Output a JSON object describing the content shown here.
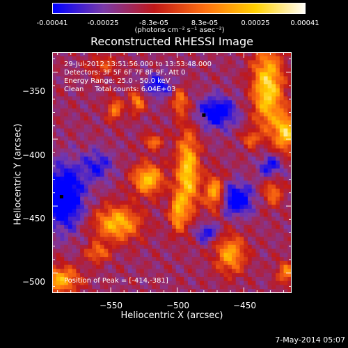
{
  "colorbar": {
    "ticks": [
      "-0.00041",
      "-0.00025",
      "-8.3e-05",
      "8.3e-05",
      "0.00025",
      "0.00041"
    ],
    "tick_values": [
      -0.00041,
      -0.00025,
      -8.3e-05,
      8.3e-05,
      0.00025,
      0.00041
    ],
    "units": "(photons cm⁻² s⁻¹ asec⁻²)"
  },
  "annotations": {
    "line1": "29-Jul-2012 13:51:56.000 to 13:53:48.000",
    "line2": "Detectors: 3F 5F 6F 7F 8F 9F, Att 0",
    "line3": "Energy Range: 25.0 - 50.0 keV",
    "line4": "Clean     Total counts: 6.04E+03",
    "peak": "Position of Peak = [-414,-381]"
  },
  "footer": {
    "date": "7-May-2014 05:07"
  },
  "chart_data": {
    "type": "heatmap",
    "title": "Reconstructed RHESSI Image",
    "xlabel": "Heliocentric X (arcsec)",
    "ylabel": "Heliocentric Y (arcsec)",
    "xlim": [
      -594,
      -414
    ],
    "ylim": [
      -515,
      -335
    ],
    "x_ticks": [
      -550,
      -500,
      -450
    ],
    "y_ticks": [
      -350,
      -400,
      -450,
      -500
    ],
    "x_tick_labels": [
      "−550",
      "−500",
      "−450"
    ],
    "y_tick_labels": [
      "−350",
      "−400",
      "−450",
      "−500"
    ],
    "value_range": [
      -0.00041,
      0.00041
    ],
    "grid": false,
    "colormap": [
      "#0000ff",
      "#7a3aa8",
      "#c01818",
      "#ff7010",
      "#ffd000",
      "#ffffff"
    ],
    "peak": {
      "x": -414,
      "y": -381
    },
    "markers": [
      {
        "x": -587,
        "y": -443
      },
      {
        "x": -480,
        "y": -382
      }
    ],
    "features": [
      {
        "x": -432,
        "y": -362,
        "sx": 8,
        "sy": 22,
        "amp": 1.0
      },
      {
        "x": -418,
        "y": -395,
        "sx": 6,
        "sy": 10,
        "amp": 0.9
      },
      {
        "x": -492,
        "y": -425,
        "sx": 6,
        "sy": 22,
        "amp": 0.95
      },
      {
        "x": -472,
        "y": -440,
        "sx": 5,
        "sy": 9,
        "amp": 0.8
      },
      {
        "x": -522,
        "y": -430,
        "sx": 8,
        "sy": 8,
        "amp": 0.9
      },
      {
        "x": -545,
        "y": -463,
        "sx": 12,
        "sy": 9,
        "amp": 0.85
      },
      {
        "x": -500,
        "y": -455,
        "sx": 4,
        "sy": 10,
        "amp": 0.7
      },
      {
        "x": -547,
        "y": -378,
        "sx": 4,
        "sy": 6,
        "amp": 0.6
      },
      {
        "x": -530,
        "y": -372,
        "sx": 4,
        "sy": 6,
        "amp": 0.65
      },
      {
        "x": -498,
        "y": -372,
        "sx": 4,
        "sy": 7,
        "amp": 0.6
      },
      {
        "x": -518,
        "y": -402,
        "sx": 5,
        "sy": 4,
        "amp": 0.55
      },
      {
        "x": -460,
        "y": -486,
        "sx": 8,
        "sy": 10,
        "amp": 0.75
      },
      {
        "x": -588,
        "y": -505,
        "sx": 10,
        "sy": 7,
        "amp": 0.8
      },
      {
        "x": -560,
        "y": -485,
        "sx": 6,
        "sy": 5,
        "amp": 0.55
      },
      {
        "x": -428,
        "y": -440,
        "sx": 5,
        "sy": 7,
        "amp": 0.55
      },
      {
        "x": -418,
        "y": -500,
        "sx": 5,
        "sy": 6,
        "amp": 0.6
      },
      {
        "x": -445,
        "y": -400,
        "sx": 4,
        "sy": 4,
        "amp": 0.5
      },
      {
        "x": -555,
        "y": -345,
        "sx": 8,
        "sy": 6,
        "amp": 0.35
      },
      {
        "x": -585,
        "y": -443,
        "sx": 10,
        "sy": 16,
        "amp": -0.9
      },
      {
        "x": -470,
        "y": -380,
        "sx": 10,
        "sy": 8,
        "amp": -0.7
      },
      {
        "x": -455,
        "y": -445,
        "sx": 8,
        "sy": 8,
        "amp": -0.75
      },
      {
        "x": -430,
        "y": -420,
        "sx": 6,
        "sy": 6,
        "amp": -0.55
      },
      {
        "x": -515,
        "y": -360,
        "sx": 8,
        "sy": 6,
        "amp": -0.5
      },
      {
        "x": -560,
        "y": -420,
        "sx": 8,
        "sy": 8,
        "amp": -0.45
      },
      {
        "x": -478,
        "y": -470,
        "sx": 6,
        "sy": 5,
        "amp": -0.5
      }
    ]
  }
}
